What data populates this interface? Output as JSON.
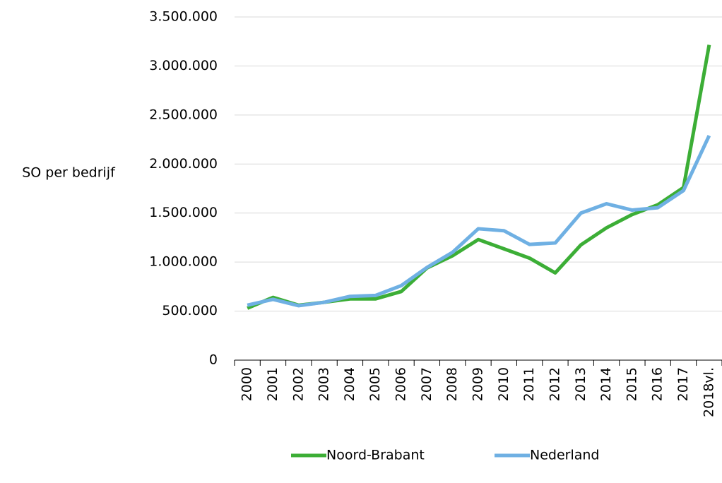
{
  "chart_data": {
    "type": "line",
    "y_label": "SO per bedrijf",
    "categories": [
      "2000",
      "2001",
      "2002",
      "2003",
      "2004",
      "2005",
      "2006",
      "2007",
      "2008",
      "2009",
      "2010",
      "2011",
      "2012",
      "2013",
      "2014",
      "2015",
      "2016",
      "2017",
      "2018vl."
    ],
    "series": [
      {
        "name": "Noord-Brabant",
        "color": "#3cae36",
        "values": [
          530000,
          640000,
          560000,
          590000,
          625000,
          625000,
          700000,
          940000,
          1065000,
          1230000,
          1135000,
          1040000,
          890000,
          1175000,
          1350000,
          1485000,
          1585000,
          1760000,
          3215000
        ]
      },
      {
        "name": "Nederland",
        "color": "#6fb0e3",
        "values": [
          560000,
          620000,
          555000,
          590000,
          650000,
          660000,
          760000,
          945000,
          1100000,
          1340000,
          1320000,
          1180000,
          1195000,
          1500000,
          1595000,
          1530000,
          1555000,
          1730000,
          2290000
        ]
      }
    ],
    "ylim": [
      0,
      3500000
    ],
    "yticks": [
      0,
      {
        "value": 500000,
        "label": "500.000"
      },
      {
        "value": 1000000,
        "label": "1.000.000"
      },
      {
        "value": 1500000,
        "label": "1.500.000"
      },
      {
        "value": 2000000,
        "label": "2.000.000"
      },
      {
        "value": 2500000,
        "label": "2.500.000"
      },
      {
        "value": 3000000,
        "label": "3.000.000"
      },
      {
        "value": 3500000,
        "label": "3.500.000"
      }
    ],
    "grid": true,
    "legend": "bottom"
  }
}
